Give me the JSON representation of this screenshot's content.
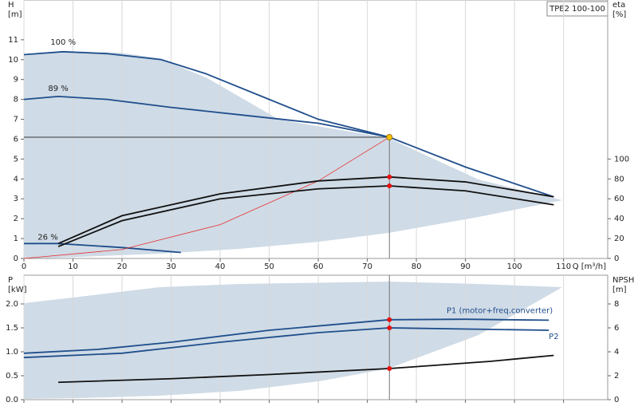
{
  "chart_data": [
    {
      "type": "line",
      "badge": "TPE2 100-100",
      "ylabel": [
        "H",
        "[m]"
      ],
      "y2label": [
        "eta",
        "[%]"
      ],
      "xlabel": "Q [m³/h]",
      "xlim": [
        0,
        119
      ],
      "xticks": [
        0,
        10,
        20,
        30,
        40,
        50,
        60,
        70,
        80,
        90,
        100,
        110
      ],
      "ylim": [
        0,
        13
      ],
      "yticks": [
        0,
        1,
        2,
        3,
        4,
        5,
        6,
        7,
        8,
        9,
        10,
        11
      ],
      "y2lim": [
        0,
        260
      ],
      "y2ticks": [
        0,
        20,
        40,
        60,
        80,
        100
      ],
      "grid": true,
      "operating_point": {
        "x": 74.5,
        "y": 6.1
      },
      "series": [
        {
          "name": "100 %",
          "color": "#1f4e8c",
          "x": [
            0,
            8,
            17,
            28,
            37,
            50,
            60,
            74.5,
            90,
            108
          ],
          "values": [
            10.25,
            10.4,
            10.3,
            10.0,
            9.3,
            8.0,
            7.0,
            6.1,
            4.6,
            3.1
          ]
        },
        {
          "name": "89 %",
          "color": "#1f4e8c",
          "x": [
            0,
            7,
            17,
            30,
            45,
            60,
            74.5
          ],
          "values": [
            8.0,
            8.15,
            8.0,
            7.6,
            7.2,
            6.8,
            6.1
          ]
        },
        {
          "name": "26 %",
          "color": "#1f4e8c",
          "x": [
            0,
            7,
            20,
            32
          ],
          "values": [
            0.75,
            0.75,
            0.55,
            0.3
          ]
        },
        {
          "color": "#e83030",
          "x": [
            0,
            20,
            40,
            60,
            74.5
          ],
          "values": [
            0,
            0.45,
            1.7,
            3.9,
            6.1
          ]
        },
        {
          "color": "#111111",
          "axis": "y2",
          "x": [
            7,
            20,
            40,
            60,
            74.5,
            90,
            108
          ],
          "values": [
            15,
            43,
            65,
            78,
            82,
            77,
            62
          ]
        },
        {
          "color": "#111111",
          "axis": "y2",
          "x": [
            7,
            20,
            40,
            60,
            74.5,
            90,
            108
          ],
          "values": [
            12,
            38,
            60,
            70,
            73,
            68,
            54
          ]
        }
      ]
    },
    {
      "type": "line",
      "ylabel": [
        "P",
        "[kW]"
      ],
      "y2label": [
        "NPSH",
        "[m]"
      ],
      "xlim": [
        0,
        119
      ],
      "xticks": [
        0,
        10,
        20,
        30,
        40,
        50,
        60,
        70,
        80,
        90,
        100,
        110
      ],
      "ylim": [
        0,
        2.6
      ],
      "yticks": [
        {
          "value": 0,
          "label": "0.0"
        },
        0.5,
        {
          "value": 1,
          "label": "1.0"
        },
        1.5,
        {
          "value": 2,
          "label": "2.0"
        }
      ],
      "y2lim": [
        0,
        10.4
      ],
      "y2ticks": [
        0,
        2,
        4,
        6,
        8
      ],
      "grid": true,
      "operating_point": {
        "x": 74.5
      },
      "series": [
        {
          "name": "P1 (motor+freq.converter)",
          "color": "#1f4e8c",
          "x": [
            0,
            15,
            30,
            50,
            74.5,
            90,
            107
          ],
          "values": [
            0.97,
            1.05,
            1.2,
            1.45,
            1.67,
            1.68,
            1.66
          ]
        },
        {
          "name": "P2",
          "color": "#1f4e8c",
          "x": [
            0,
            20,
            40,
            60,
            74.5,
            107
          ],
          "values": [
            0.88,
            0.97,
            1.2,
            1.4,
            1.5,
            1.45
          ]
        },
        {
          "color": "#111111",
          "axis": "y2",
          "x": [
            7,
            30,
            50,
            74.5,
            95,
            108
          ],
          "values": [
            1.45,
            1.75,
            2.1,
            2.6,
            3.2,
            3.7
          ]
        }
      ]
    }
  ]
}
